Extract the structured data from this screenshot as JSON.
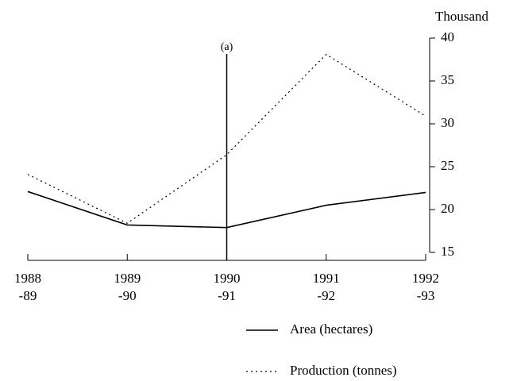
{
  "chart_data": {
    "type": "line",
    "categories": [
      "1988\n-89",
      "1989\n-90",
      "1990\n-91",
      "1991\n-92",
      "1992\n-93"
    ],
    "series": [
      {
        "name": "Area (hectares)",
        "color": "#000000",
        "dash": "none",
        "values": [
          22.1,
          18.2,
          17.9,
          20.5,
          22.0
        ]
      },
      {
        "name": "Production (tonnes)",
        "color": "#000000",
        "dash": "2,4",
        "values": [
          24.1,
          18.4,
          26.4,
          38.1,
          30.9
        ]
      }
    ],
    "y_axis_label": "Thousand",
    "ylim": [
      15,
      40
    ],
    "yticks": [
      15,
      20,
      25,
      30,
      35,
      40
    ],
    "annotation": {
      "text": "(a)",
      "category": 2
    }
  }
}
